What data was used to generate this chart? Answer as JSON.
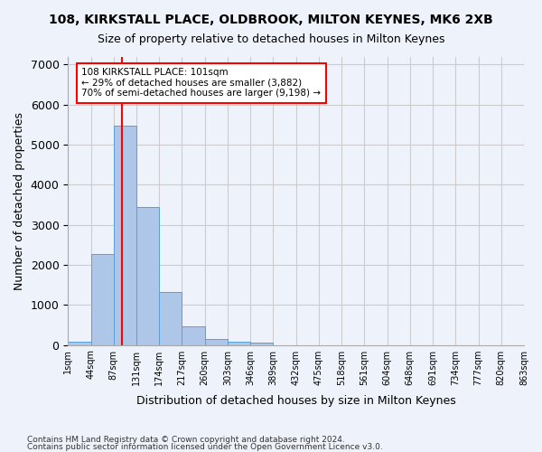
{
  "title1": "108, KIRKSTALL PLACE, OLDBROOK, MILTON KEYNES, MK6 2XB",
  "title2": "Size of property relative to detached houses in Milton Keynes",
  "xlabel": "Distribution of detached houses by size in Milton Keynes",
  "ylabel": "Number of detached properties",
  "bin_labels": [
    "1sqm",
    "44sqm",
    "87sqm",
    "131sqm",
    "174sqm",
    "217sqm",
    "260sqm",
    "303sqm",
    "346sqm",
    "389sqm",
    "432sqm",
    "475sqm",
    "518sqm",
    "561sqm",
    "604sqm",
    "648sqm",
    "691sqm",
    "734sqm",
    "777sqm",
    "820sqm",
    "863sqm"
  ],
  "bar_values": [
    75,
    2280,
    5470,
    3440,
    1310,
    460,
    155,
    90,
    55,
    0,
    0,
    0,
    0,
    0,
    0,
    0,
    0,
    0,
    0,
    0
  ],
  "bar_color": "#aec6e8",
  "bar_edge_color": "#5a9fd4",
  "vline_x": 2.35,
  "vline_color": "red",
  "annotation_text": "108 KIRKSTALL PLACE: 101sqm\n← 29% of detached houses are smaller (3,882)\n70% of semi-detached houses are larger (9,198) →",
  "annotation_box_color": "white",
  "annotation_box_edgecolor": "red",
  "grid_color": "#cccccc",
  "background_color": "#eef3fb",
  "ylim": [
    0,
    7200
  ],
  "yticks": [
    0,
    1000,
    2000,
    3000,
    4000,
    5000,
    6000,
    7000
  ],
  "footer1": "Contains HM Land Registry data © Crown copyright and database right 2024.",
  "footer2": "Contains public sector information licensed under the Open Government Licence v3.0."
}
